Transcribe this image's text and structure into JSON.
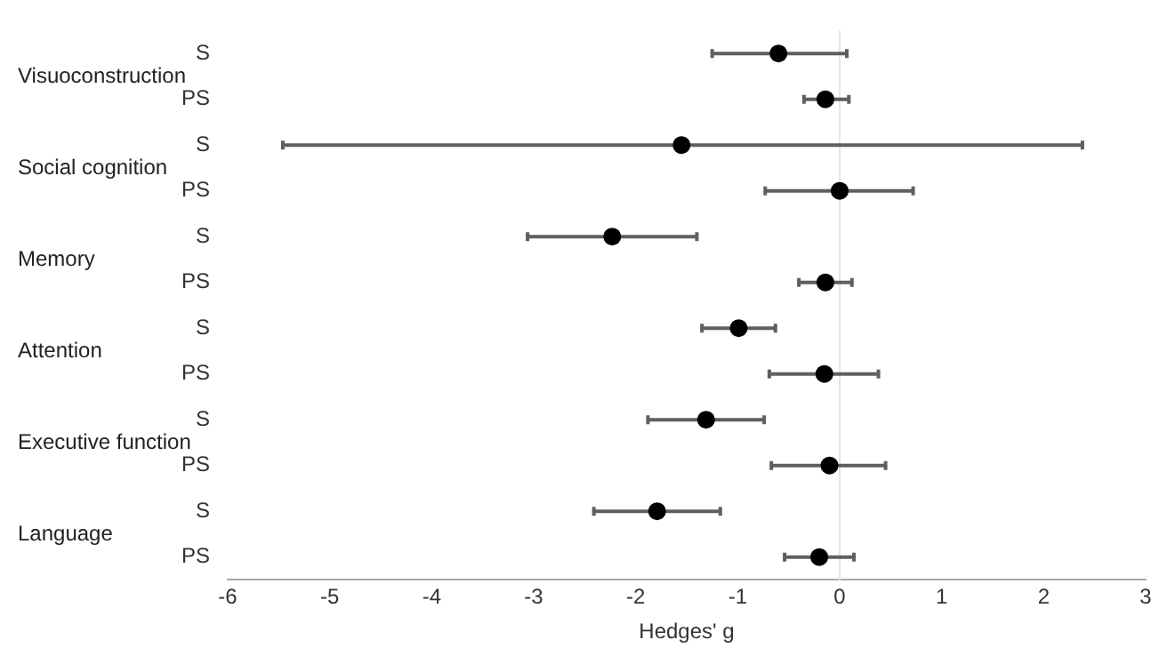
{
  "chart_data": {
    "type": "scatter",
    "orientation": "horizontal",
    "xlabel": "Hedges' g",
    "categories": [
      "S",
      "PS",
      "S",
      "PS",
      "S",
      "PS",
      "S",
      "PS",
      "S",
      "PS",
      "S",
      "PS"
    ],
    "values": [
      -0.6,
      -0.14,
      -1.55,
      0.0,
      -2.23,
      -0.14,
      -0.99,
      -0.15,
      -1.31,
      -0.1,
      -1.79,
      -0.2
    ],
    "errors": [
      [
        -1.25,
        0.07
      ],
      [
        -0.35,
        0.09
      ],
      [
        -5.46,
        2.38
      ],
      [
        -0.73,
        0.72
      ],
      [
        -3.06,
        -1.4
      ],
      [
        -0.4,
        0.12
      ],
      [
        -1.35,
        -0.63
      ],
      [
        -0.69,
        0.38
      ],
      [
        -1.88,
        -0.74
      ],
      [
        -0.67,
        0.45
      ],
      [
        -2.41,
        -1.17
      ],
      [
        -0.54,
        0.14
      ]
    ],
    "color": "#000000",
    "marker": "circle",
    "grid": false,
    "legend": false,
    "xlim": [
      -6,
      3
    ],
    "xticks": [
      -6,
      -5,
      -4,
      -3,
      -2,
      -1,
      0,
      1,
      2,
      3
    ],
    "ref_lines": [
      {
        "axis": "x",
        "value": 0,
        "color": "#e6e6e6"
      }
    ],
    "annotations": [
      "Visuoconstruction",
      "Social cognition",
      "Memory",
      "Attention",
      "Executive function",
      "Language"
    ]
  }
}
